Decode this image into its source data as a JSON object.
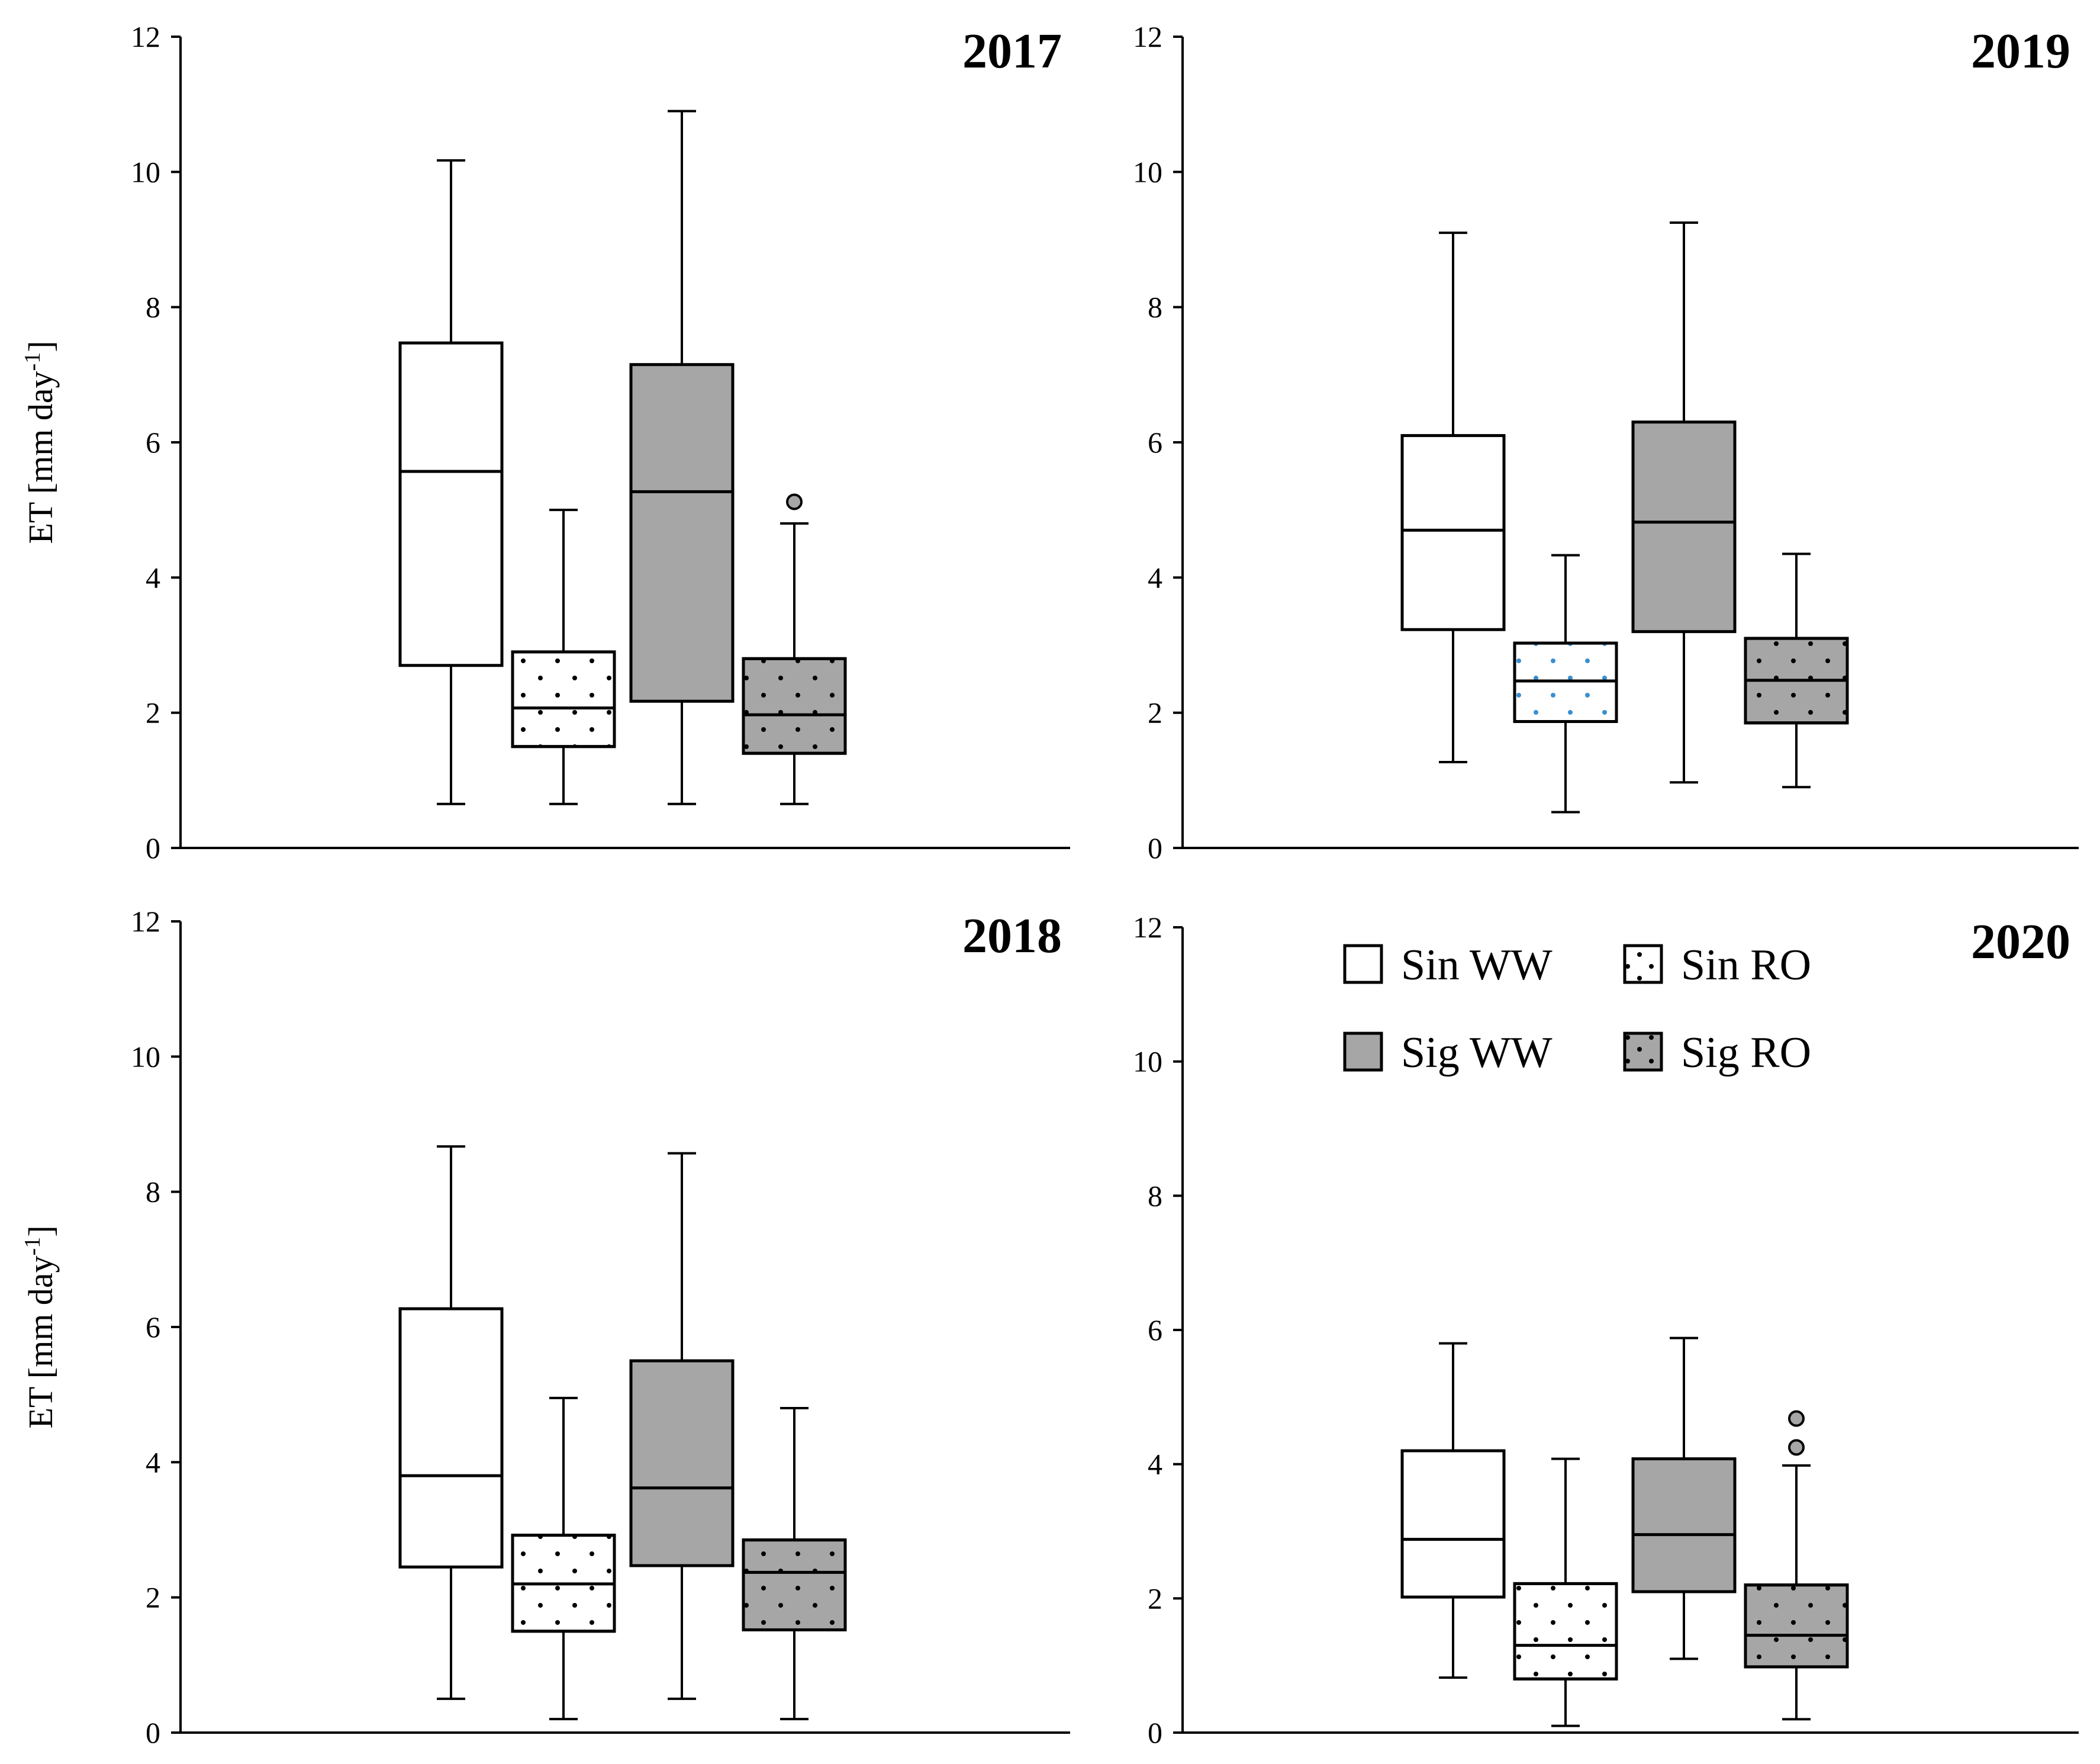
{
  "colors": {
    "white_fill": "#ffffff",
    "grey_fill": "#a6a6a6",
    "dot": "#000000",
    "dot_2019": "#3a8fd0",
    "outlier_fill": "#a6a6a6"
  },
  "legend": {
    "items": [
      {
        "label": "Sin WW",
        "fill": "white",
        "pattern": "none"
      },
      {
        "label": "Sin RO",
        "fill": "white",
        "pattern": "dots"
      },
      {
        "label": "Sig WW",
        "fill": "grey",
        "pattern": "none"
      },
      {
        "label": "Sig RO",
        "fill": "grey",
        "pattern": "dots"
      }
    ]
  },
  "chart_data": [
    {
      "type": "box",
      "title": "2017",
      "ylabel": "ET [mm day",
      "ylabel_sup": "-1",
      "ylabel_close": "]",
      "ylim": [
        0,
        12
      ],
      "yticks": [
        0,
        2,
        4,
        6,
        8,
        10,
        12
      ],
      "series": [
        {
          "name": "Sin WW",
          "min": 0.65,
          "q1": 2.7,
          "median": 5.57,
          "q3": 7.47,
          "max": 10.17,
          "outliers": []
        },
        {
          "name": "Sin RO",
          "min": 0.65,
          "q1": 1.5,
          "median": 2.07,
          "q3": 2.9,
          "max": 5.0,
          "outliers": []
        },
        {
          "name": "Sig WW",
          "min": 0.65,
          "q1": 2.17,
          "median": 5.27,
          "q3": 7.15,
          "max": 10.9,
          "outliers": []
        },
        {
          "name": "Sig RO",
          "min": 0.65,
          "q1": 1.4,
          "median": 1.97,
          "q3": 2.8,
          "max": 4.8,
          "outliers": [
            5.12
          ]
        }
      ]
    },
    {
      "type": "box",
      "title": "2019",
      "ylabel": "",
      "ylabel_sup": "",
      "ylabel_close": "",
      "ylim": [
        0,
        12
      ],
      "yticks": [
        0,
        2,
        4,
        6,
        8,
        10,
        12
      ],
      "series": [
        {
          "name": "Sin WW",
          "min": 1.27,
          "q1": 3.23,
          "median": 4.7,
          "q3": 6.1,
          "max": 9.1,
          "outliers": []
        },
        {
          "name": "Sin RO",
          "min": 0.53,
          "q1": 1.87,
          "median": 2.47,
          "q3": 3.03,
          "max": 4.33,
          "outliers": []
        },
        {
          "name": "Sig WW",
          "min": 0.97,
          "q1": 3.2,
          "median": 4.82,
          "q3": 6.3,
          "max": 9.25,
          "outliers": []
        },
        {
          "name": "Sig RO",
          "min": 0.9,
          "q1": 1.85,
          "median": 2.48,
          "q3": 3.1,
          "max": 4.35,
          "outliers": []
        }
      ]
    },
    {
      "type": "box",
      "title": "2018",
      "ylabel": "ET [mm day",
      "ylabel_sup": "-1",
      "ylabel_close": "]",
      "ylim": [
        0,
        12
      ],
      "yticks": [
        0,
        2,
        4,
        6,
        8,
        10,
        12
      ],
      "series": [
        {
          "name": "Sin WW",
          "min": 0.5,
          "q1": 2.45,
          "median": 3.8,
          "q3": 6.27,
          "max": 8.67,
          "outliers": []
        },
        {
          "name": "Sin RO",
          "min": 0.2,
          "q1": 1.5,
          "median": 2.2,
          "q3": 2.92,
          "max": 4.95,
          "outliers": []
        },
        {
          "name": "Sig WW",
          "min": 0.5,
          "q1": 2.47,
          "median": 3.62,
          "q3": 5.5,
          "max": 8.57,
          "outliers": []
        },
        {
          "name": "Sig RO",
          "min": 0.2,
          "q1": 1.52,
          "median": 2.37,
          "q3": 2.85,
          "max": 4.8,
          "outliers": []
        }
      ]
    },
    {
      "type": "box",
      "title": "2020",
      "ylabel": "",
      "ylabel_sup": "",
      "ylabel_close": "",
      "ylim": [
        0,
        12
      ],
      "yticks": [
        0,
        2,
        4,
        6,
        8,
        10,
        12
      ],
      "series": [
        {
          "name": "Sin WW",
          "min": 0.82,
          "q1": 2.02,
          "median": 2.88,
          "q3": 4.2,
          "max": 5.8,
          "outliers": []
        },
        {
          "name": "Sin RO",
          "min": 0.1,
          "q1": 0.8,
          "median": 1.3,
          "q3": 2.22,
          "max": 4.08,
          "outliers": []
        },
        {
          "name": "Sig WW",
          "min": 1.1,
          "q1": 2.1,
          "median": 2.95,
          "q3": 4.08,
          "max": 5.88,
          "outliers": []
        },
        {
          "name": "Sig RO",
          "min": 0.2,
          "q1": 0.98,
          "median": 1.45,
          "q3": 2.2,
          "max": 3.98,
          "outliers": [
            4.25,
            4.68
          ]
        }
      ]
    }
  ]
}
